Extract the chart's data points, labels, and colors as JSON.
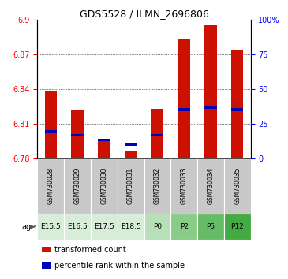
{
  "title": "GDS5528 / ILMN_2696806",
  "samples": [
    "GSM730028",
    "GSM730029",
    "GSM730030",
    "GSM730031",
    "GSM730032",
    "GSM730033",
    "GSM730034",
    "GSM730035"
  ],
  "age_labels": [
    "E15.5",
    "E16.5",
    "E17.5",
    "E18.5",
    "P0",
    "P2",
    "P5",
    "P12"
  ],
  "age_colors_list": [
    "#d8edd8",
    "#d8edd8",
    "#d8edd8",
    "#d8edd8",
    "#b8e0b8",
    "#88cc88",
    "#66bb66",
    "#44aa44"
  ],
  "red_values": [
    6.838,
    6.822,
    6.797,
    6.787,
    6.823,
    6.883,
    6.895,
    6.873
  ],
  "blue_values": [
    6.803,
    6.8,
    6.796,
    6.792,
    6.8,
    6.822,
    6.824,
    6.822
  ],
  "ylim_left": [
    6.78,
    6.9
  ],
  "yticks_left": [
    6.78,
    6.81,
    6.84,
    6.87,
    6.9
  ],
  "yticks_right": [
    0,
    25,
    50,
    75,
    100
  ],
  "bar_bottom": 6.78,
  "bar_width": 0.45,
  "red_color": "#cc1100",
  "blue_color": "#0000bb",
  "sample_bg_color": "#c8c8c8",
  "legend_red": "transformed count",
  "legend_blue": "percentile rank within the sample",
  "blue_bar_height": 0.0025,
  "grid_lines": [
    6.81,
    6.84,
    6.87
  ],
  "figsize": [
    3.65,
    3.54
  ],
  "dpi": 100
}
